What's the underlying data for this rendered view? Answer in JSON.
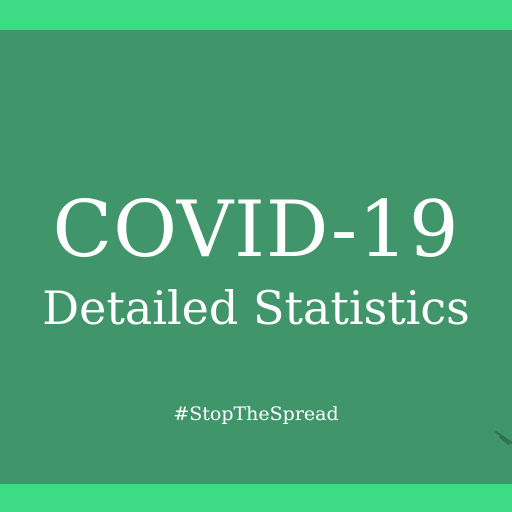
{
  "banner": {
    "title": "COVID-19",
    "subtitle": "Detailed Statistics",
    "hashtag": "#StopTheSpread"
  },
  "colors": {
    "accent_band": "#3ddc84",
    "panel_background": "#41956b",
    "text": "#ffffff"
  }
}
